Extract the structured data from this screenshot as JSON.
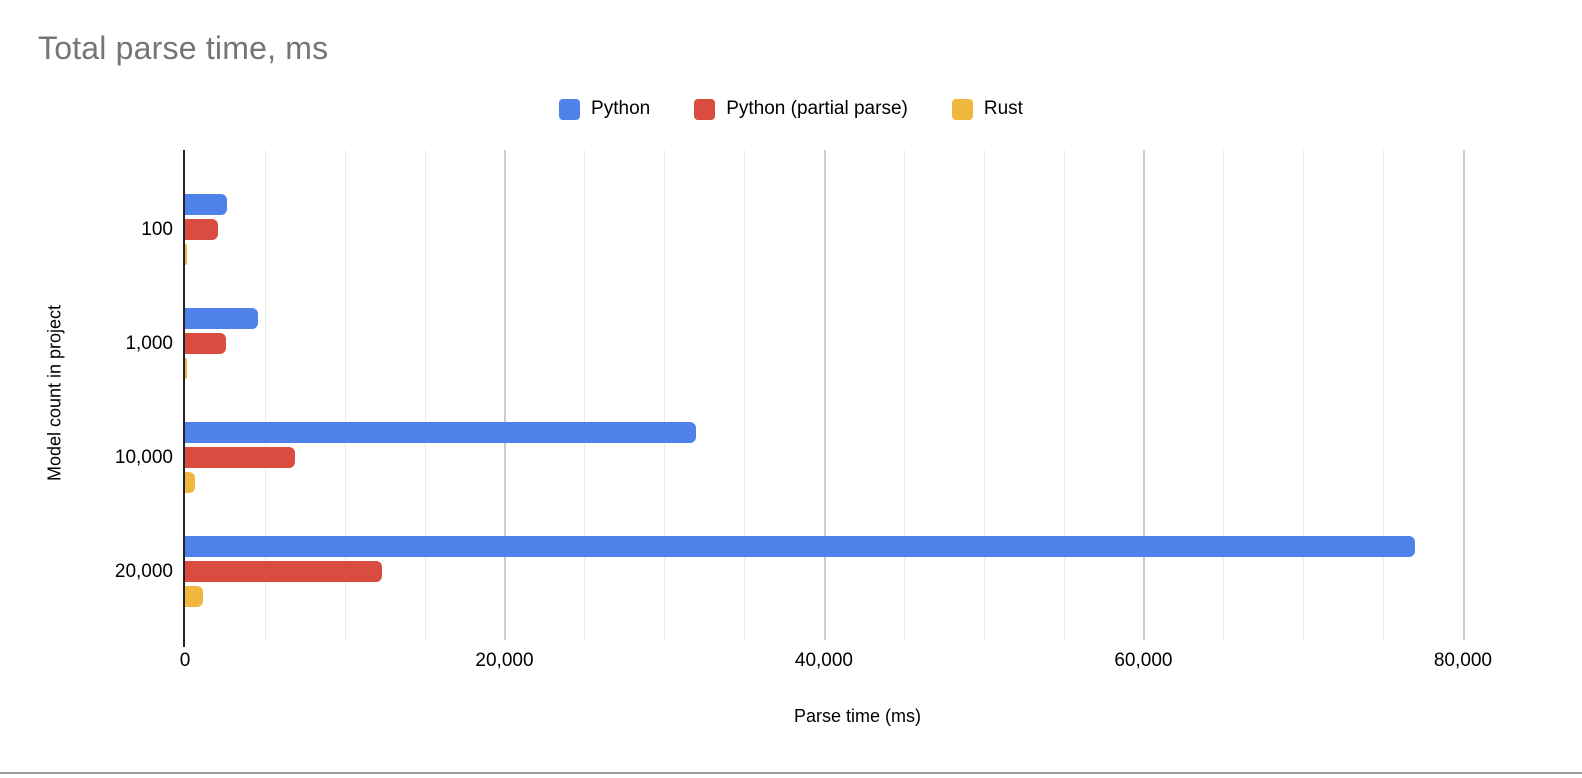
{
  "title": "Total parse time, ms",
  "colors": {
    "series_python": "#4e81ea",
    "series_python_partial": "#d94c3f",
    "series_rust": "#f0b73e",
    "title_text": "#757575",
    "axis_text": "#000000",
    "gridline_minor": "#ebebeb",
    "gridline_major": "#cccccc",
    "axis_line": "#212121"
  },
  "chart_data": {
    "type": "bar",
    "orientation": "horizontal",
    "title": "Total parse time, ms",
    "xlabel": "Parse time (ms)",
    "ylabel": "Model count in project",
    "categories": [
      "100",
      "1,000",
      "10,000",
      "20,000"
    ],
    "series": [
      {
        "name": "Python",
        "color": "#4e81ea",
        "values": [
          2600,
          4600,
          32000,
          77000
        ]
      },
      {
        "name": "Python (partial parse)",
        "color": "#d94c3f",
        "values": [
          2050,
          2550,
          6900,
          12350
        ]
      },
      {
        "name": "Rust",
        "color": "#f0b73e",
        "values": [
          110,
          120,
          620,
          1100
        ]
      }
    ],
    "x_ticks": [
      {
        "value": 0,
        "label": "0"
      },
      {
        "value": 20000,
        "label": "20,000"
      },
      {
        "value": 40000,
        "label": "40,000"
      },
      {
        "value": 60000,
        "label": "60,000"
      },
      {
        "value": 80000,
        "label": "80,000"
      }
    ],
    "xlim": [
      0,
      84200
    ],
    "gridline_step": 5000,
    "gridline_major_step": 20000,
    "gridline_max": 80000,
    "grid": true,
    "legend_position": "top-center"
  }
}
